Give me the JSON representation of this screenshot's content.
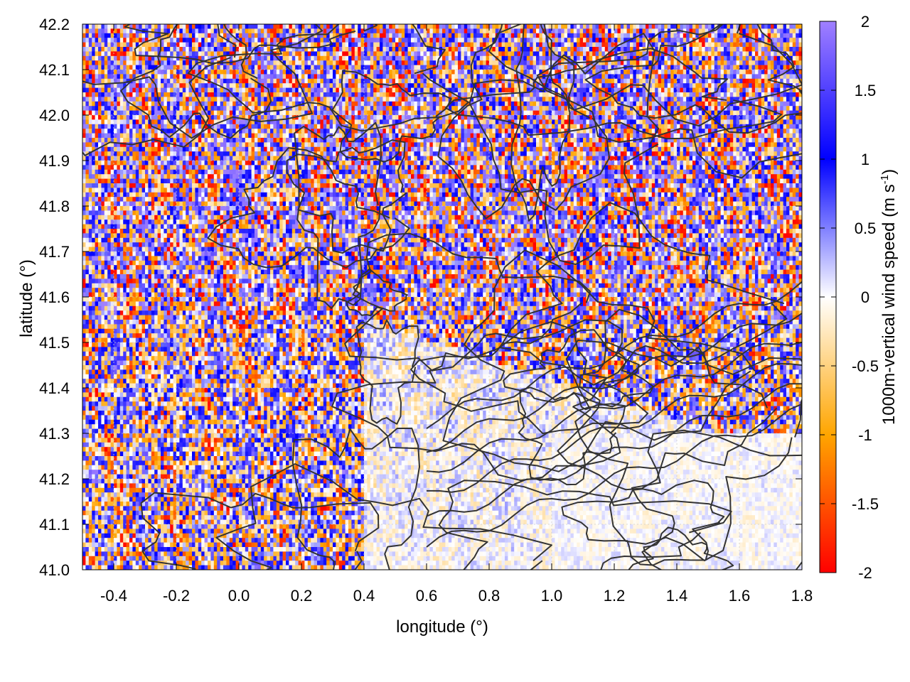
{
  "chart_data": {
    "type": "heatmap",
    "title": "",
    "xlabel": "longitude (°)",
    "ylabel": "latitude (°)",
    "colorbar_label_main": "1000m-vertical wind speed (m s",
    "colorbar_label_sup": "-1",
    "colorbar_label_tail": ")",
    "xlim": [
      -0.5,
      1.8
    ],
    "ylim": [
      41.0,
      42.2
    ],
    "zlim": [
      -2,
      2
    ],
    "grid": true,
    "x_ticks": [
      "-0.4",
      "-0.2",
      "0.0",
      "0.2",
      "0.4",
      "0.6",
      "0.8",
      "1.0",
      "1.2",
      "1.4",
      "1.6",
      "1.8"
    ],
    "x_tick_values": [
      -0.4,
      -0.2,
      0.0,
      0.2,
      0.4,
      0.6,
      0.8,
      1.0,
      1.2,
      1.4,
      1.6,
      1.8
    ],
    "y_ticks": [
      "41.0",
      "41.1",
      "41.2",
      "41.3",
      "41.4",
      "41.5",
      "41.6",
      "41.7",
      "41.8",
      "41.9",
      "42.0",
      "42.1",
      "42.2"
    ],
    "y_tick_values": [
      41.0,
      41.1,
      41.2,
      41.3,
      41.4,
      41.5,
      41.6,
      41.7,
      41.8,
      41.9,
      42.0,
      42.1,
      42.2
    ],
    "colorbar_ticks": [
      "2",
      "1.5",
      "1",
      "0.5",
      "0",
      "-0.5",
      "-1",
      "-1.5",
      "-2"
    ],
    "colorbar_tick_values": [
      2,
      1.5,
      1,
      0.5,
      0,
      -0.5,
      -1,
      -1.5,
      -2
    ],
    "colormap": [
      {
        "value": -2,
        "color": "#ff0000"
      },
      {
        "value": -1,
        "color": "#ffa500"
      },
      {
        "value": 0,
        "color": "#ffffff"
      },
      {
        "value": 1,
        "color": "#0000ff"
      },
      {
        "value": 2,
        "color": "#a080ff"
      }
    ],
    "contour_color": "#333333",
    "field_description_regions": "turbulent high-variance field over the north and west; weak near-zero field over the southeast (sea)"
  }
}
